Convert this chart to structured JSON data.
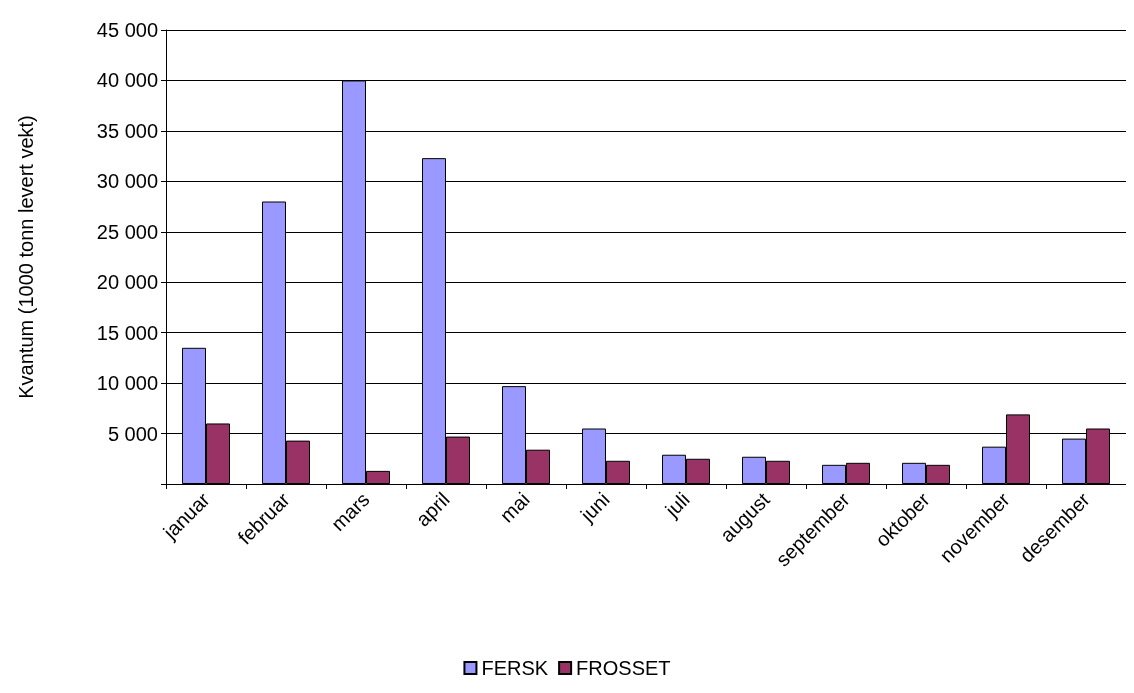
{
  "chart_data": {
    "type": "bar",
    "ylabel": "Kvantum (1000 tonn levert vekt)",
    "categories": [
      "januar",
      "februar",
      "mars",
      "april",
      "mai",
      "juni",
      "juli",
      "august",
      "september",
      "oktober",
      "november",
      "desember"
    ],
    "series": [
      {
        "name": "FERSK",
        "color": "#9999ff",
        "values": [
          13500,
          28000,
          40000,
          32300,
          9700,
          5500,
          2900,
          2700,
          1900,
          2100,
          3700,
          4500
        ]
      },
      {
        "name": "FROSSET",
        "color": "#993366",
        "values": [
          6000,
          4300,
          1300,
          4700,
          3400,
          2300,
          2500,
          2300,
          2100,
          1900,
          6900,
          5500
        ]
      }
    ],
    "ylim": [
      0,
      45000
    ],
    "yticks": [
      {
        "value": 0,
        "label": null
      },
      {
        "value": 5000,
        "label": "5 000"
      },
      {
        "value": 10000,
        "label": "10 000"
      },
      {
        "value": 15000,
        "label": "15 000"
      },
      {
        "value": 20000,
        "label": "20 000"
      },
      {
        "value": 25000,
        "label": "25 000"
      },
      {
        "value": 30000,
        "label": "30 000"
      },
      {
        "value": 35000,
        "label": "35 000"
      },
      {
        "value": 40000,
        "label": "40 000"
      },
      {
        "value": 45000,
        "label": "45 000"
      }
    ],
    "grid": "y",
    "legend": "bottom"
  }
}
